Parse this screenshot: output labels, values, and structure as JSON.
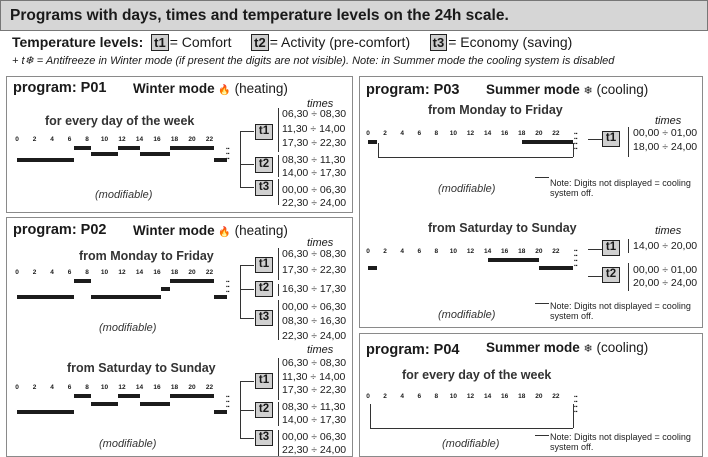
{
  "header": {
    "title": "Programs with days, times and temperature levels on the 24h scale."
  },
  "levels": {
    "label": "Temperature levels:",
    "t1": "t1",
    "t1_text": "= Comfort",
    "t2": "t2",
    "t2_text": "= Activity (pre-comfort)",
    "t3": "t3",
    "t3_text": "= Economy (saving)"
  },
  "note": "+ t❄ = Antifreeze in Winter mode (if present the digits are not visible). Note: in Summer mode the cooling system is disabled",
  "ruler_ticks": [
    "0",
    "2",
    "4",
    "6",
    "8",
    "10",
    "12",
    "14",
    "16",
    "18",
    "20",
    "22"
  ],
  "common": {
    "times": "times",
    "modifiable": "(modifiable)",
    "winter_mode": "Winter mode",
    "winter_icon": "🔥",
    "heating": "(heating)",
    "summer_mode": "Summer mode",
    "summer_icon": "❄",
    "cooling": "(cooling)",
    "not_displayed": "Note: Digits not displayed = cooling system off."
  },
  "p01": {
    "title": "program: P01",
    "sub": "for every day of the week",
    "t1": "t1",
    "t2": "t2",
    "t3": "t3",
    "t1_times": [
      "06,30 ÷ 08,30",
      "11,30 ÷ 14,00",
      "17,30 ÷ 22,30"
    ],
    "t2_times": [
      "08,30 ÷ 11,30",
      "14,00 ÷ 17,30"
    ],
    "t3_times": [
      "00,00 ÷ 06,30",
      "22,30 ÷ 24,00"
    ]
  },
  "p02": {
    "title": "program: P02",
    "sub1": "from Monday to Friday",
    "sub2": "from Saturday to Sunday",
    "t1": "t1",
    "t2": "t2",
    "t3": "t3",
    "a_t1_times": [
      "06,30 ÷ 08,30",
      "17,30 ÷ 22,30"
    ],
    "a_t2_times": [
      "16,30 ÷ 17,30"
    ],
    "a_t3_times": [
      "00,00 ÷ 06,30",
      "08,30 ÷ 16,30",
      "22,30 ÷ 24,00"
    ],
    "b_t1_times": [
      "06,30 ÷ 08,30",
      "11,30 ÷ 14,00",
      "17,30 ÷ 22,30"
    ],
    "b_t2_times": [
      "08,30 ÷ 11,30",
      "14,00 ÷ 17,30"
    ],
    "b_t3_times": [
      "00,00 ÷ 06,30",
      "22,30 ÷ 24,00"
    ]
  },
  "p03": {
    "title": "program: P03",
    "sub1": "from Monday to Friday",
    "sub2": "from Saturday to Sunday",
    "t1": "t1",
    "t2": "t2",
    "a_t1_times": [
      "00,00 ÷ 01,00",
      "18,00 ÷ 24,00"
    ],
    "b_t1_times": [
      "14,00 ÷ 20,00"
    ],
    "b_t2_times": [
      "00,00 ÷ 01,00",
      "20,00 ÷ 24,00"
    ]
  },
  "p04": {
    "title": "program: P04",
    "sub": "for every day of the week"
  }
}
